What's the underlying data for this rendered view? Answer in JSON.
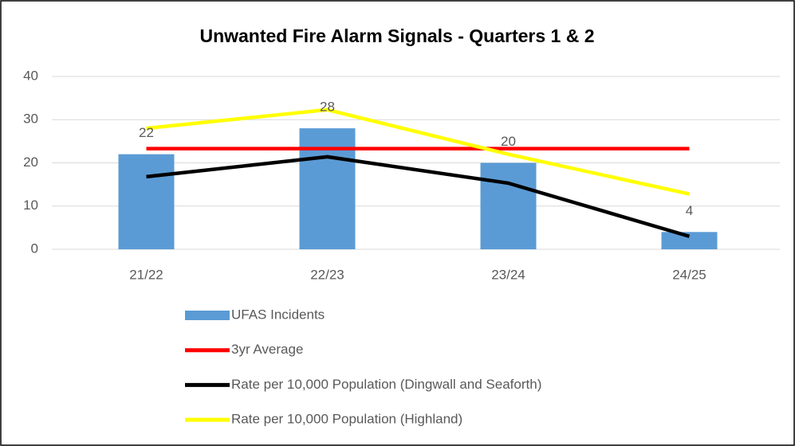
{
  "chart_data": {
    "type": "bar",
    "title": "Unwanted Fire Alarm Signals - Quarters 1 & 2",
    "categories": [
      "21/22",
      "22/23",
      "23/24",
      "24/25"
    ],
    "series": [
      {
        "name": "UFAS Incidents",
        "type": "bar",
        "color": "#5b9bd5",
        "values": [
          22,
          28,
          20,
          4
        ]
      },
      {
        "name": "3yr Average",
        "type": "line",
        "color": "#ff0000",
        "values": [
          23.3,
          23.3,
          23.3,
          23.3
        ]
      },
      {
        "name": "Rate per 10,000 Population (Dingwall and Seaforth)",
        "type": "line",
        "color": "#000000",
        "values": [
          16.8,
          21.4,
          15.3,
          3
        ]
      },
      {
        "name": "Rate per 10,000 Population (Highland)",
        "type": "line",
        "color": "#ffff00",
        "values": [
          28,
          32.3,
          22,
          12.8
        ]
      }
    ],
    "ylim": [
      0,
      40
    ],
    "yticks": [
      0,
      10,
      20,
      30,
      40
    ],
    "grid": true
  }
}
